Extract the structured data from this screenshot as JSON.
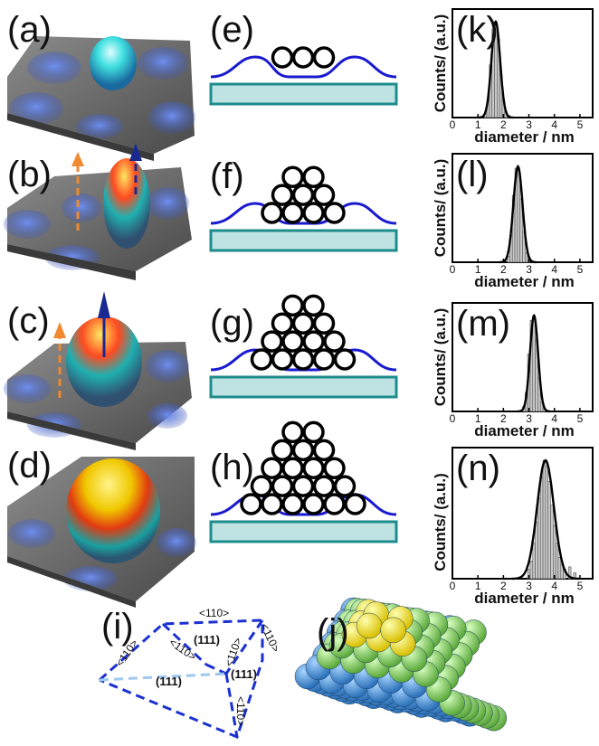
{
  "figure": {
    "labels": {
      "a": "(a)",
      "b": "(b)",
      "c": "(c)",
      "d": "(d)",
      "e": "(e)",
      "f": "(f)",
      "g": "(g)",
      "h": "(h)",
      "i": "(i)",
      "j": "(j)",
      "k": "(k)",
      "l": "(l)",
      "m": "(m)",
      "n": "(n)"
    },
    "ylabel": "Counts/ (a.u.)",
    "xlabel": "diameter / nm",
    "crystal": {
      "dir110": "<110>",
      "face111": "(111)"
    },
    "colors": {
      "surface_gray": "#6e6e6e",
      "blob_blue": "#4a6cd8",
      "substrate": "#bfe3e3",
      "substrate_border": "#1e8c8c",
      "wave": "#1a1ad0",
      "dash": "#1a30d0",
      "ball_blue": "#3d8fd6",
      "ball_green": "#8ed36a",
      "ball_yellow": "#f2e020"
    }
  },
  "chart_data": [
    {
      "type": "bar",
      "panel": "(k)",
      "x": [
        1.3,
        1.4,
        1.5,
        1.6,
        1.7,
        1.8,
        1.9,
        2.0,
        2.1,
        2.2
      ],
      "values": [
        0.04,
        0.18,
        0.55,
        0.92,
        1.0,
        0.82,
        0.45,
        0.18,
        0.06,
        0.02
      ],
      "fit": {
        "center": 1.7,
        "sigma": 0.17
      },
      "xlim": [
        0,
        5.5
      ],
      "xticks": [
        "0",
        "1",
        "2",
        "3",
        "4",
        "5"
      ],
      "xlabel": "diameter / nm",
      "ylabel": "Counts/ (a.u.)"
    },
    {
      "type": "bar",
      "panel": "(l)",
      "x": [
        2.2,
        2.3,
        2.4,
        2.5,
        2.6,
        2.7,
        2.8,
        2.9,
        3.0
      ],
      "values": [
        0.06,
        0.28,
        0.7,
        0.98,
        0.96,
        0.66,
        0.32,
        0.1,
        0.03
      ],
      "fit": {
        "center": 2.57,
        "sigma": 0.18
      },
      "xlim": [
        0,
        5.5
      ],
      "xticks": [
        "0",
        "1",
        "2",
        "3",
        "4",
        "5"
      ],
      "xlabel": "diameter / nm",
      "ylabel": "Counts/ (a.u.)"
    },
    {
      "type": "bar",
      "panel": "(m)",
      "x": [
        2.8,
        2.9,
        3.0,
        3.1,
        3.2,
        3.3,
        3.4,
        3.5,
        3.6
      ],
      "values": [
        0.05,
        0.2,
        0.6,
        0.95,
        1.0,
        0.75,
        0.35,
        0.1,
        0.03
      ],
      "fit": {
        "center": 3.2,
        "sigma": 0.16
      },
      "xlim": [
        0,
        5.5
      ],
      "xticks": [
        "0",
        "1",
        "2",
        "3",
        "4",
        "5"
      ],
      "xlabel": "diameter / nm",
      "ylabel": "Counts/ (a.u.)"
    },
    {
      "type": "bar",
      "panel": "(n)",
      "x": [
        3.0,
        3.1,
        3.2,
        3.3,
        3.4,
        3.5,
        3.6,
        3.7,
        3.8,
        3.9,
        4.0,
        4.1,
        4.2,
        4.3,
        4.4,
        4.6,
        4.8
      ],
      "values": [
        0.08,
        0.15,
        0.3,
        0.48,
        0.68,
        0.86,
        1.0,
        0.95,
        0.82,
        0.62,
        0.45,
        0.3,
        0.18,
        0.12,
        0.08,
        0.1,
        0.05
      ],
      "fit": {
        "center": 3.65,
        "sigma": 0.33
      },
      "xlim": [
        0,
        5.5
      ],
      "xticks": [
        "0",
        "1",
        "2",
        "3",
        "4",
        "5"
      ],
      "xlabel": "diameter / nm",
      "ylabel": "Counts/ (a.u.)"
    }
  ]
}
